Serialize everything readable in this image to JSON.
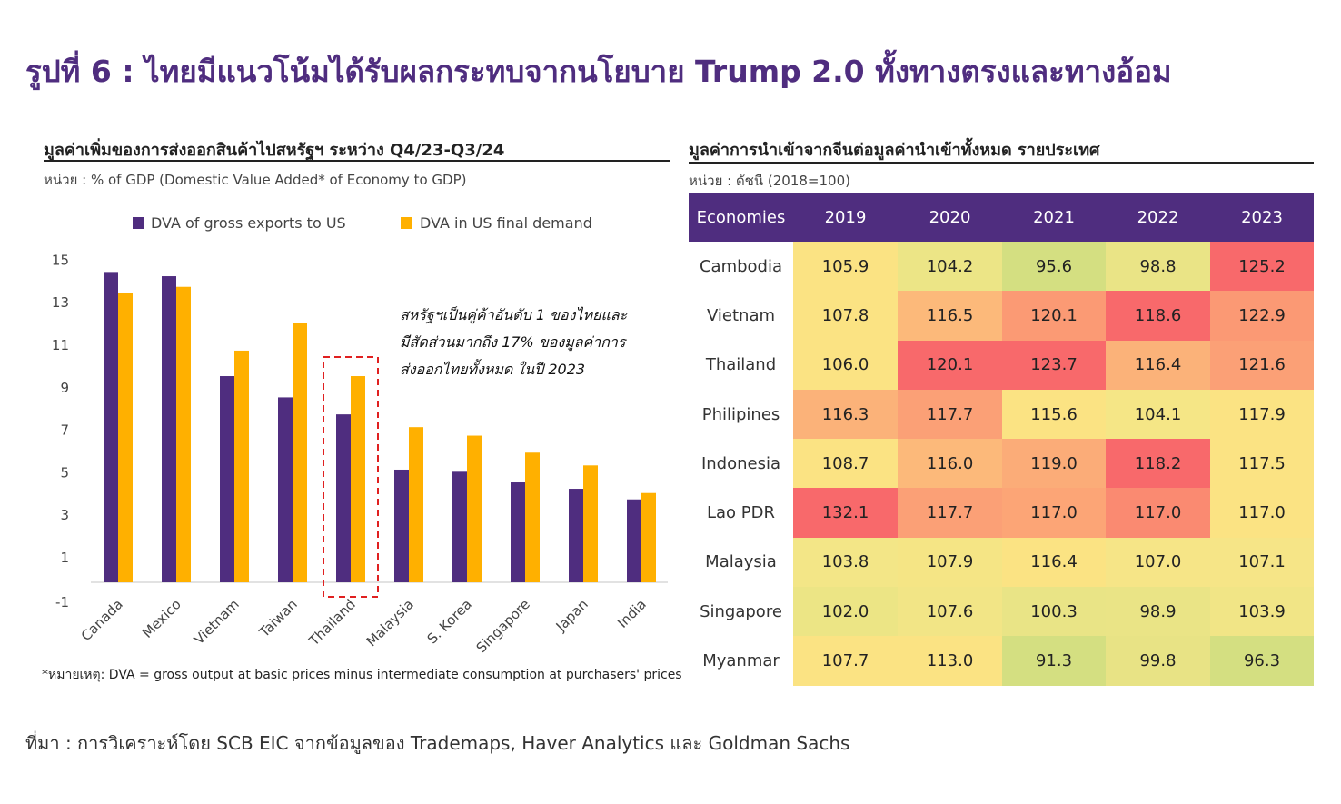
{
  "title": "รูปที่ 6 : ไทยมีแนวโน้มได้รับผลกระทบจากนโยบาย Trump 2.0 ทั้งทางตรงและทางอ้อม",
  "left_panel": {
    "title": "มูลค่าเพิ่มของการส่งออกสินค้าไปสหรัฐฯ ระหว่าง Q4/23-Q3/24",
    "unit": "หน่วย : % of GDP (Domestic Value Added* of Economy to GDP)",
    "annotation": [
      "สหรัฐฯเป็นคู่ค้าอันดับ  1 ของไทยและ",
      "มีสัดส่วนมากถึง  17% ของมูลค่าการ",
      "ส่งออกไทยทั้งหมด  ในปี  2023"
    ],
    "footnote": "*หมายเหตุ: DVA  = gross output at basic prices minus intermediate consumption at purchasers' prices"
  },
  "right_panel": {
    "title": "มูลค่าการนำเข้าจากจีนต่อมูลค่านำเข้าทั้งหมด รายประเทศ",
    "unit": "หน่วย : ดัชนี (2018=100)"
  },
  "source": "ที่มา : การวิเคราะห์โดย SCB EIC จากข้อมูลของ Trademaps, Haver Analytics และ Goldman Sachs",
  "colors": {
    "brand_purple": "#4f2d7f",
    "series_purple": "#4f2d7f",
    "series_orange": "#ffb000",
    "highlight_box": "#e02020"
  },
  "chart_data": [
    {
      "type": "bar",
      "categories": [
        "Canada",
        "Mexico",
        "Vietnam",
        "Taiwan",
        "Thailand",
        "Malaysia",
        "S. Korea",
        "Singapore",
        "Japan",
        "India"
      ],
      "series": [
        {
          "name": "DVA of gross exports to US",
          "values": [
            14.6,
            14.4,
            9.7,
            8.7,
            7.9,
            5.3,
            5.2,
            4.7,
            4.4,
            3.9
          ]
        },
        {
          "name": "DVA in US final demand",
          "values": [
            13.6,
            13.9,
            10.9,
            12.2,
            9.7,
            7.3,
            6.9,
            6.1,
            5.5,
            4.2
          ]
        }
      ],
      "yticks": [
        "15",
        "13",
        "11",
        "9",
        "7",
        "5",
        "3",
        "1",
        "-1"
      ],
      "ylim": [
        -1,
        15
      ],
      "legend_position": "top",
      "highlighted_category": "Thailand",
      "grid": false
    },
    {
      "type": "heatmap",
      "corner_label": "Economies",
      "columns": [
        "2019",
        "2020",
        "2021",
        "2022",
        "2023"
      ],
      "rows": [
        {
          "label": "Cambodia",
          "values": [
            "105.9",
            "104.2",
            "95.6",
            "98.8",
            "125.2"
          ]
        },
        {
          "label": "Vietnam",
          "values": [
            "107.8",
            "116.5",
            "120.1",
            "118.6",
            "122.9"
          ]
        },
        {
          "label": "Thailand",
          "values": [
            "106.0",
            "120.1",
            "123.7",
            "116.4",
            "121.6"
          ]
        },
        {
          "label": "Philipines",
          "values": [
            "116.3",
            "117.7",
            "115.6",
            "104.1",
            "117.9"
          ]
        },
        {
          "label": "Indonesia",
          "values": [
            "108.7",
            "116.0",
            "119.0",
            "118.2",
            "117.5"
          ]
        },
        {
          "label": "Lao PDR",
          "values": [
            "132.1",
            "117.7",
            "117.0",
            "117.0",
            "117.0"
          ]
        },
        {
          "label": "Malaysia",
          "values": [
            "103.8",
            "107.9",
            "116.4",
            "107.0",
            "107.1"
          ]
        },
        {
          "label": "Singapore",
          "values": [
            "102.0",
            "107.6",
            "100.3",
            "98.9",
            "103.9"
          ]
        },
        {
          "label": "Myanmar",
          "values": [
            "107.7",
            "113.0",
            "91.3",
            "99.8",
            "96.3"
          ]
        }
      ],
      "cell_colors": [
        [
          "#fbe383",
          "#ece586",
          "#d4df81",
          "#eae486",
          "#f8696b"
        ],
        [
          "#fbe383",
          "#fcb97a",
          "#fb9a74",
          "#f8696b",
          "#fb9974"
        ],
        [
          "#fbe383",
          "#f8696b",
          "#f8696b",
          "#fbb279",
          "#fba076"
        ],
        [
          "#fbb279",
          "#fba076",
          "#fbe383",
          "#f5e686",
          "#fbe383"
        ],
        [
          "#fbe383",
          "#fcb97a",
          "#fbac78",
          "#f8696b",
          "#fbe383"
        ],
        [
          "#f8696b",
          "#fba076",
          "#fca576",
          "#fa8a71",
          "#fbe383"
        ],
        [
          "#f3e687",
          "#f5e585",
          "#fbe383",
          "#f6e587",
          "#f6e587"
        ],
        [
          "#ece585",
          "#f2e586",
          "#e9e486",
          "#eae486",
          "#f1e586"
        ],
        [
          "#fbe383",
          "#fbe383",
          "#d4df81",
          "#e8e385",
          "#d4df81"
        ]
      ]
    }
  ]
}
